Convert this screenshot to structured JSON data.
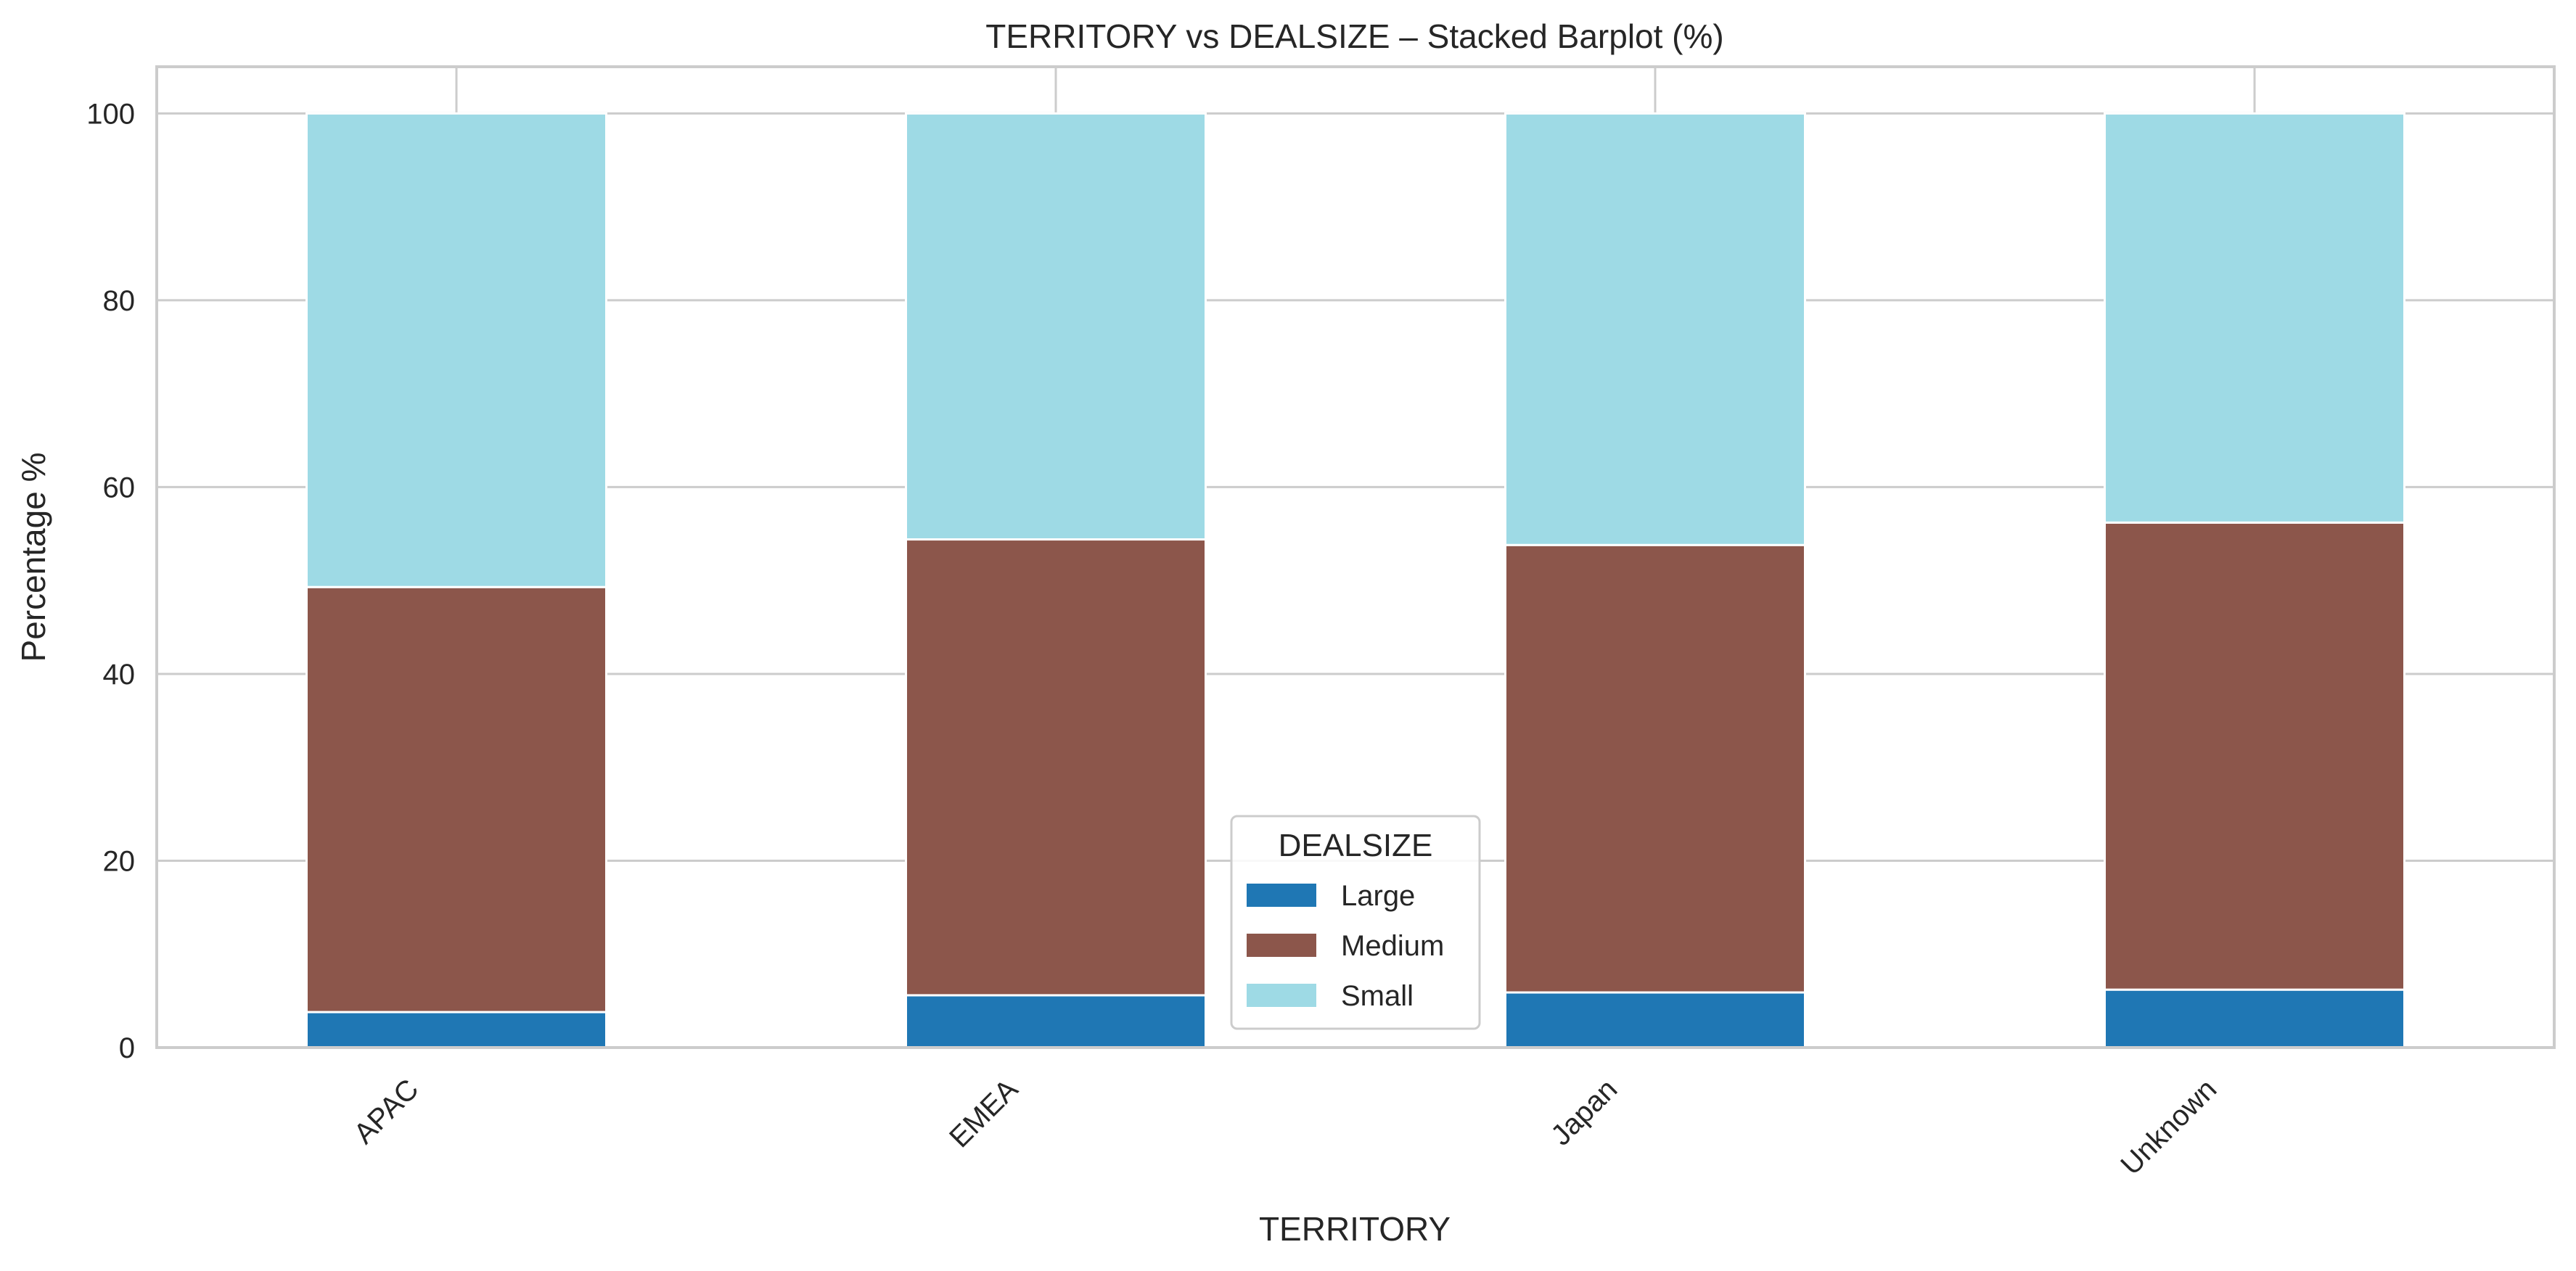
{
  "chart_data": {
    "type": "bar",
    "stacked": true,
    "title": "TERRITORY vs DEALSIZE – Stacked Barplot (%)",
    "xlabel": "TERRITORY",
    "ylabel": "Percentage %",
    "ylim": [
      0,
      105
    ],
    "yticks": [
      0,
      20,
      40,
      60,
      80,
      100
    ],
    "categories": [
      "APAC",
      "EMEA",
      "Japan",
      "Unknown"
    ],
    "series": [
      {
        "name": "Large",
        "color": "#1f77b4",
        "values": [
          3.8,
          5.6,
          5.9,
          6.2
        ]
      },
      {
        "name": "Medium",
        "color": "#8c564b",
        "values": [
          45.5,
          48.8,
          47.9,
          50.0
        ]
      },
      {
        "name": "Small",
        "color": "#9edae5",
        "values": [
          50.7,
          45.6,
          46.2,
          43.8
        ]
      }
    ],
    "grid": true,
    "legend": {
      "title": "DEALSIZE",
      "placement": "lower-center"
    }
  }
}
